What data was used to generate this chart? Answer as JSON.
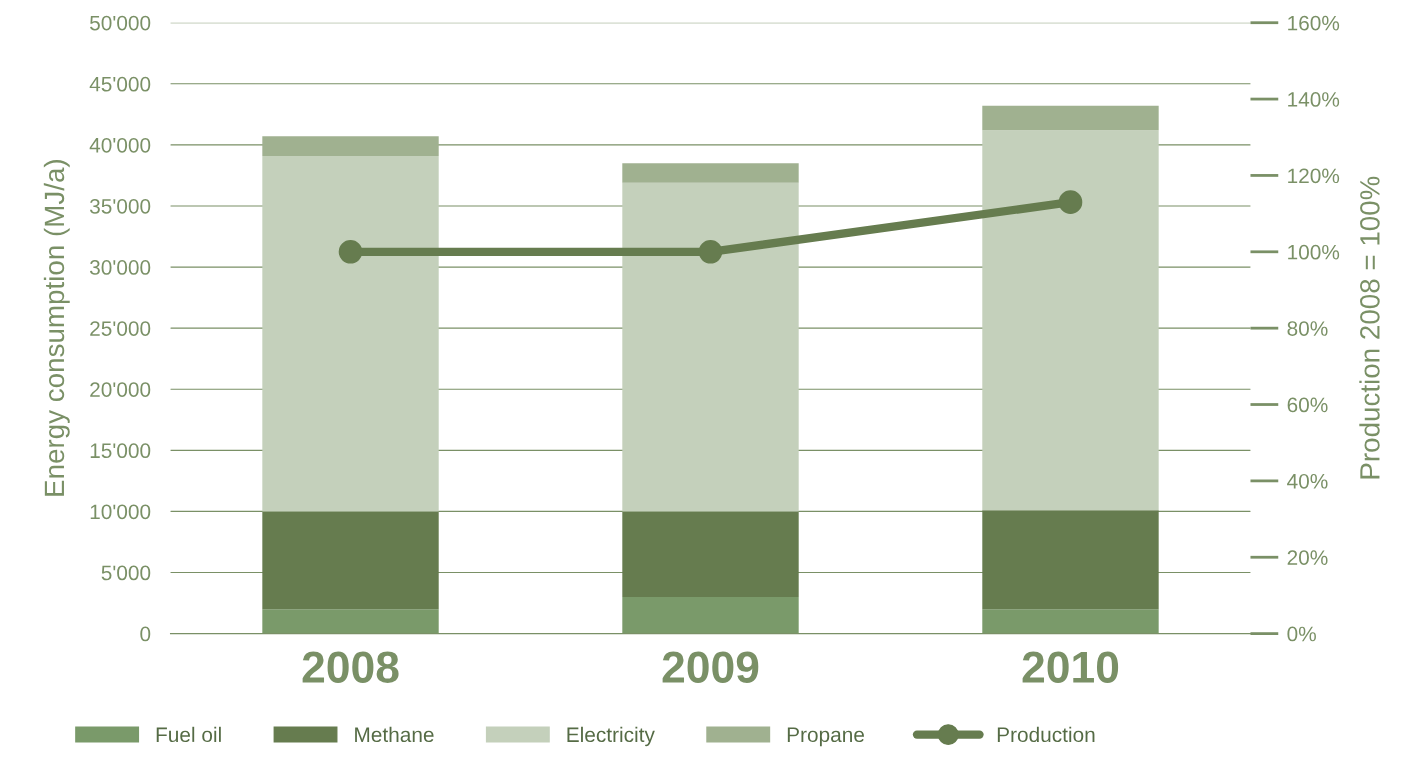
{
  "chart_data": {
    "type": "bar",
    "stacked": true,
    "categories": [
      "2008",
      "2009",
      "2010"
    ],
    "ylabel": "Energy consumption (MJ/a)",
    "y2label": "Production 2008 = 100%",
    "series": [
      {
        "name": "Fuel oil",
        "color": "#7a9a6a",
        "values": [
          2000,
          3000,
          2000
        ]
      },
      {
        "name": "Methane",
        "color": "#667c4f",
        "values": [
          8000,
          7000,
          8100
        ]
      },
      {
        "name": "Electricity",
        "color": "#c4d0bb",
        "values": [
          29100,
          26900,
          31100
        ]
      },
      {
        "name": "Propane",
        "color": "#a0b190",
        "values": [
          1600,
          1600,
          2000
        ]
      },
      {
        "name": "Production",
        "type": "line",
        "axis": "y2",
        "color": "#667c4f",
        "marker": "circle",
        "values": [
          100,
          100,
          113
        ]
      }
    ],
    "ylim": [
      0,
      50000
    ],
    "yticks": [
      0,
      {
        "value": 5000,
        "label": "5'000"
      },
      {
        "value": 10000,
        "label": "10'000"
      },
      {
        "value": 15000,
        "label": "15'000"
      },
      {
        "value": 20000,
        "label": "20'000"
      },
      {
        "value": 25000,
        "label": "25'000"
      },
      {
        "value": 30000,
        "label": "30'000"
      },
      {
        "value": 35000,
        "label": "35'000"
      },
      {
        "value": 40000,
        "label": "40'000"
      },
      {
        "value": 45000,
        "label": "45'000"
      },
      {
        "value": 50000,
        "label": "50'000"
      }
    ],
    "y2lim": [
      0,
      160
    ],
    "y2ticks": [
      {
        "value": 0,
        "label": "0%"
      },
      {
        "value": 20,
        "label": "20%"
      },
      {
        "value": 40,
        "label": "40%"
      },
      {
        "value": 60,
        "label": "60%"
      },
      {
        "value": 80,
        "label": "80%"
      },
      {
        "value": 100,
        "label": "100%"
      },
      {
        "value": 120,
        "label": "120%"
      },
      {
        "value": 140,
        "label": "140%"
      },
      {
        "value": 160,
        "label": "160%"
      }
    ],
    "grid": "y",
    "legend": "bottom"
  }
}
